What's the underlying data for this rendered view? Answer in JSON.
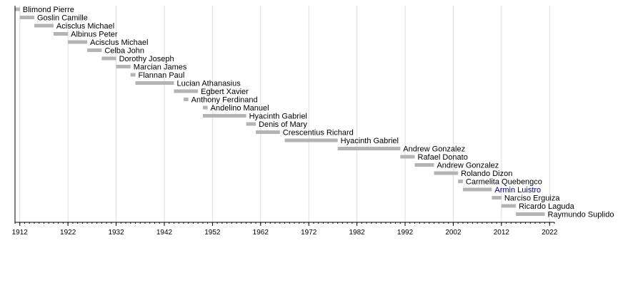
{
  "chart_data": {
    "type": "bar",
    "orientation": "horizontal-timeline",
    "title": "",
    "xlabel": "",
    "ylabel": "",
    "xlim": [
      1911,
      2023
    ],
    "ticks": [
      1912,
      1922,
      1932,
      1942,
      1952,
      1962,
      1972,
      1982,
      1992,
      2002,
      2012,
      2022
    ],
    "grid": true,
    "colors": {
      "bar": "#b4b4b4",
      "highlight_label": "#000080",
      "grid": "#dddddd",
      "axis": "#000000"
    },
    "series": [
      {
        "label": "Blimond Pierre",
        "start": 1911,
        "end": 1912
      },
      {
        "label": "Goslin Camille",
        "start": 1912,
        "end": 1915
      },
      {
        "label": "Acisclus Michael",
        "start": 1915,
        "end": 1919
      },
      {
        "label": "Albinus Peter",
        "start": 1919,
        "end": 1922
      },
      {
        "label": "Acisclus Michael",
        "start": 1922,
        "end": 1926
      },
      {
        "label": "Celba John",
        "start": 1926,
        "end": 1929
      },
      {
        "label": "Dorothy Joseph",
        "start": 1929,
        "end": 1932
      },
      {
        "label": "Marcian James",
        "start": 1932,
        "end": 1935
      },
      {
        "label": "Flannan Paul",
        "start": 1935,
        "end": 1936
      },
      {
        "label": "Lucian Athanasius",
        "start": 1936,
        "end": 1944
      },
      {
        "label": "Egbert Xavier",
        "start": 1944,
        "end": 1949
      },
      {
        "label": "Anthony Ferdinand",
        "start": 1946,
        "end": 1947
      },
      {
        "label": "Andelino Manuel",
        "start": 1950,
        "end": 1951
      },
      {
        "label": "Hyacinth Gabriel",
        "start": 1950,
        "end": 1959
      },
      {
        "label": "Denis of Mary",
        "start": 1959,
        "end": 1961
      },
      {
        "label": "Crescentius Richard",
        "start": 1961,
        "end": 1966
      },
      {
        "label": "Hyacinth Gabriel",
        "start": 1967,
        "end": 1978
      },
      {
        "label": "Andrew Gonzalez",
        "start": 1978,
        "end": 1991
      },
      {
        "label": "Rafael Donato",
        "start": 1991,
        "end": 1994
      },
      {
        "label": "Andrew Gonzalez",
        "start": 1994,
        "end": 1998
      },
      {
        "label": "Rolando Dizon",
        "start": 1998,
        "end": 2003
      },
      {
        "label": "Carmelita Quebengco",
        "start": 2003,
        "end": 2004
      },
      {
        "label": "Armin Luistro",
        "start": 2004,
        "end": 2010,
        "highlight": true
      },
      {
        "label": "Narciso Erguiza",
        "start": 2010,
        "end": 2012
      },
      {
        "label": "Ricardo Laguda",
        "start": 2012,
        "end": 2015
      },
      {
        "label": "Raymundo Suplido",
        "start": 2015,
        "end": 2021
      }
    ]
  }
}
